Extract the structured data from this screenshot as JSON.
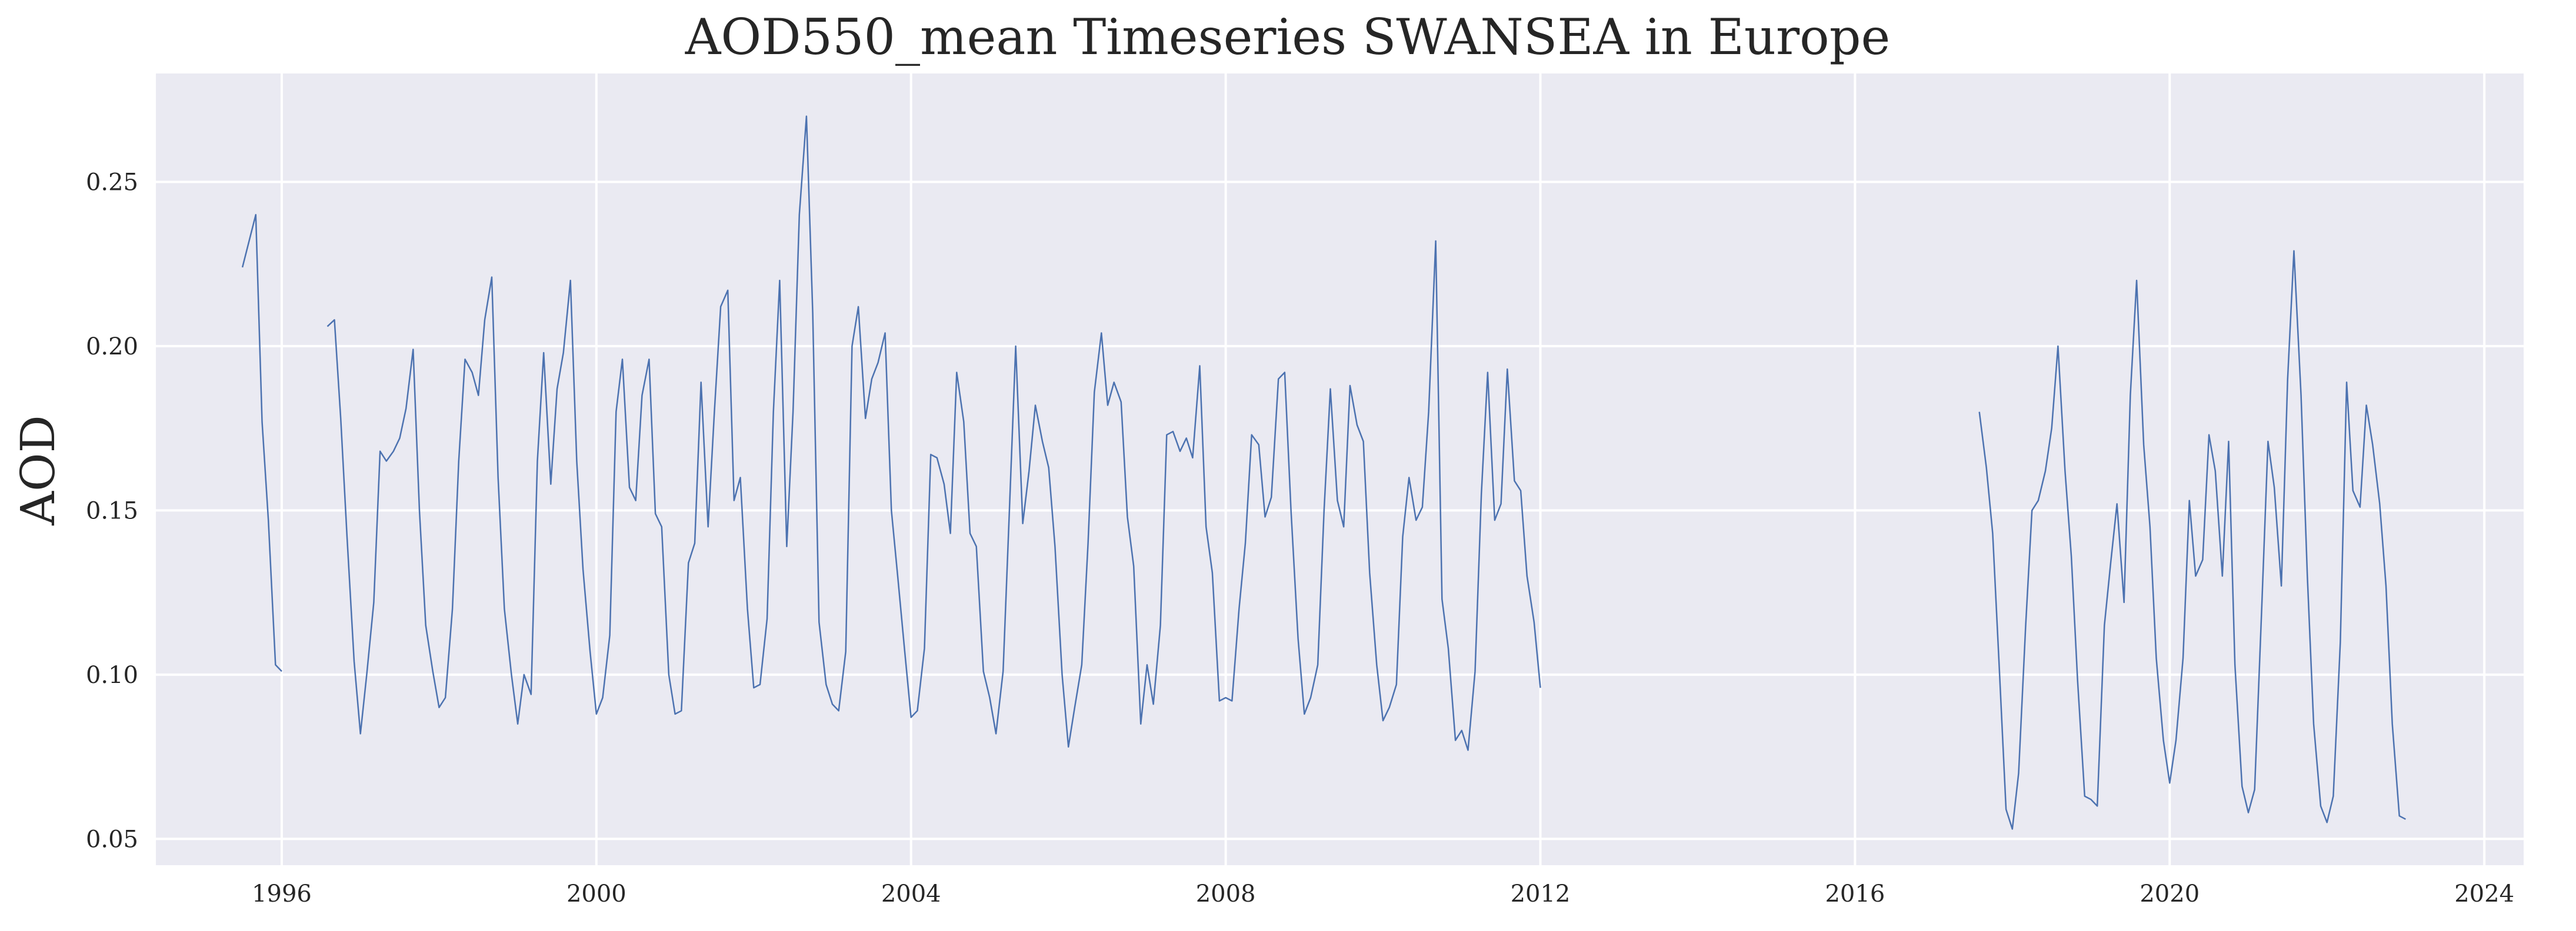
{
  "chart_data": {
    "type": "line",
    "title": "AOD550_mean Timeseries SWANSEA in Europe",
    "xlabel": "",
    "ylabel": "AOD",
    "x_ticks": [
      "1996",
      "2000",
      "2004",
      "2008",
      "2012",
      "2016",
      "2020",
      "2024"
    ],
    "y_ticks": [
      "0.05",
      "0.10",
      "0.15",
      "0.20",
      "0.25"
    ],
    "xlim": [
      1994.4,
      2024.5
    ],
    "ylim": [
      0.042,
      0.283
    ],
    "grid": true,
    "legend": "none",
    "colors": {
      "background": "#eaeaf2",
      "grid": "#ffffff",
      "line": "#4c72b0"
    },
    "series": [
      {
        "points": [
          [
            1995.5,
            0.224
          ],
          [
            1995.67,
            0.24
          ],
          [
            1995.75,
            0.177
          ],
          [
            1995.83,
            0.147
          ],
          [
            1995.92,
            0.103
          ],
          [
            1996.0,
            0.101
          ],
          null,
          [
            1996.58,
            0.206
          ],
          [
            1996.67,
            0.208
          ],
          [
            1996.75,
            0.178
          ],
          [
            1996.83,
            0.142
          ],
          [
            1996.92,
            0.104
          ],
          [
            1997.0,
            0.082
          ],
          [
            1997.08,
            0.1
          ],
          [
            1997.17,
            0.122
          ],
          [
            1997.25,
            0.168
          ],
          [
            1997.33,
            0.165
          ],
          [
            1997.42,
            0.168
          ],
          [
            1997.5,
            0.172
          ],
          [
            1997.58,
            0.181
          ],
          [
            1997.67,
            0.199
          ],
          [
            1997.75,
            0.15
          ],
          [
            1997.83,
            0.115
          ],
          [
            1997.92,
            0.101
          ],
          [
            1998.0,
            0.09
          ],
          [
            1998.08,
            0.093
          ],
          [
            1998.17,
            0.12
          ],
          [
            1998.25,
            0.165
          ],
          [
            1998.33,
            0.196
          ],
          [
            1998.42,
            0.192
          ],
          [
            1998.5,
            0.185
          ],
          [
            1998.58,
            0.208
          ],
          [
            1998.67,
            0.221
          ],
          [
            1998.75,
            0.16
          ],
          [
            1998.83,
            0.12
          ],
          [
            1998.92,
            0.1
          ],
          [
            1999.0,
            0.085
          ],
          [
            1999.08,
            0.1
          ],
          [
            1999.17,
            0.094
          ],
          [
            1999.25,
            0.165
          ],
          [
            1999.33,
            0.198
          ],
          [
            1999.42,
            0.158
          ],
          [
            1999.5,
            0.187
          ],
          [
            1999.58,
            0.198
          ],
          [
            1999.67,
            0.22
          ],
          [
            1999.75,
            0.165
          ],
          [
            1999.83,
            0.132
          ],
          [
            1999.92,
            0.107
          ],
          [
            2000.0,
            0.088
          ],
          [
            2000.08,
            0.093
          ],
          [
            2000.17,
            0.112
          ],
          [
            2000.25,
            0.18
          ],
          [
            2000.33,
            0.196
          ],
          [
            2000.42,
            0.157
          ],
          [
            2000.5,
            0.153
          ],
          [
            2000.58,
            0.185
          ],
          [
            2000.67,
            0.196
          ],
          [
            2000.75,
            0.149
          ],
          [
            2000.83,
            0.145
          ],
          [
            2000.92,
            0.1
          ],
          [
            2001.0,
            0.088
          ],
          [
            2001.08,
            0.089
          ],
          [
            2001.17,
            0.134
          ],
          [
            2001.25,
            0.14
          ],
          [
            2001.33,
            0.189
          ],
          [
            2001.42,
            0.145
          ],
          [
            2001.5,
            0.18
          ],
          [
            2001.58,
            0.212
          ],
          [
            2001.67,
            0.217
          ],
          [
            2001.75,
            0.153
          ],
          [
            2001.83,
            0.16
          ],
          [
            2001.92,
            0.12
          ],
          [
            2002.0,
            0.096
          ],
          [
            2002.08,
            0.097
          ],
          [
            2002.17,
            0.117
          ],
          [
            2002.25,
            0.18
          ],
          [
            2002.33,
            0.22
          ],
          [
            2002.42,
            0.139
          ],
          [
            2002.5,
            0.18
          ],
          [
            2002.58,
            0.24
          ],
          [
            2002.67,
            0.27
          ],
          [
            2002.75,
            0.21
          ],
          [
            2002.83,
            0.116
          ],
          [
            2002.92,
            0.097
          ],
          [
            2003.0,
            0.091
          ],
          [
            2003.08,
            0.089
          ],
          [
            2003.17,
            0.107
          ],
          [
            2003.25,
            0.2
          ],
          [
            2003.33,
            0.212
          ],
          [
            2003.42,
            0.178
          ],
          [
            2003.5,
            0.19
          ],
          [
            2003.58,
            0.195
          ],
          [
            2003.67,
            0.204
          ],
          [
            2003.75,
            0.15
          ],
          [
            2003.83,
            0.13
          ],
          [
            2003.92,
            0.107
          ],
          [
            2004.0,
            0.087
          ],
          [
            2004.08,
            0.089
          ],
          [
            2004.17,
            0.108
          ],
          [
            2004.25,
            0.167
          ],
          [
            2004.33,
            0.166
          ],
          [
            2004.42,
            0.158
          ],
          [
            2004.5,
            0.143
          ],
          [
            2004.58,
            0.192
          ],
          [
            2004.67,
            0.177
          ],
          [
            2004.75,
            0.143
          ],
          [
            2004.83,
            0.139
          ],
          [
            2004.92,
            0.101
          ],
          [
            2005.0,
            0.093
          ],
          [
            2005.08,
            0.082
          ],
          [
            2005.17,
            0.101
          ],
          [
            2005.25,
            0.15
          ],
          [
            2005.33,
            0.2
          ],
          [
            2005.42,
            0.146
          ],
          [
            2005.5,
            0.162
          ],
          [
            2005.58,
            0.182
          ],
          [
            2005.67,
            0.171
          ],
          [
            2005.75,
            0.163
          ],
          [
            2005.83,
            0.139
          ],
          [
            2005.92,
            0.1
          ],
          [
            2006.0,
            0.078
          ],
          [
            2006.08,
            0.09
          ],
          [
            2006.17,
            0.103
          ],
          [
            2006.25,
            0.14
          ],
          [
            2006.33,
            0.186
          ],
          [
            2006.42,
            0.204
          ],
          [
            2006.5,
            0.182
          ],
          [
            2006.58,
            0.189
          ],
          [
            2006.67,
            0.183
          ],
          [
            2006.75,
            0.148
          ],
          [
            2006.83,
            0.133
          ],
          [
            2006.92,
            0.085
          ],
          [
            2007.0,
            0.103
          ],
          [
            2007.08,
            0.091
          ],
          [
            2007.17,
            0.115
          ],
          [
            2007.25,
            0.173
          ],
          [
            2007.33,
            0.174
          ],
          [
            2007.42,
            0.168
          ],
          [
            2007.5,
            0.172
          ],
          [
            2007.58,
            0.166
          ],
          [
            2007.67,
            0.194
          ],
          [
            2007.75,
            0.145
          ],
          [
            2007.83,
            0.131
          ],
          [
            2007.92,
            0.092
          ],
          [
            2008.0,
            0.093
          ],
          [
            2008.08,
            0.092
          ],
          [
            2008.17,
            0.12
          ],
          [
            2008.25,
            0.14
          ],
          [
            2008.33,
            0.173
          ],
          [
            2008.42,
            0.17
          ],
          [
            2008.5,
            0.148
          ],
          [
            2008.58,
            0.154
          ],
          [
            2008.67,
            0.19
          ],
          [
            2008.75,
            0.192
          ],
          [
            2008.83,
            0.15
          ],
          [
            2008.92,
            0.111
          ],
          [
            2009.0,
            0.088
          ],
          [
            2009.08,
            0.093
          ],
          [
            2009.17,
            0.103
          ],
          [
            2009.25,
            0.15
          ],
          [
            2009.33,
            0.187
          ],
          [
            2009.42,
            0.153
          ],
          [
            2009.5,
            0.145
          ],
          [
            2009.58,
            0.188
          ],
          [
            2009.67,
            0.176
          ],
          [
            2009.75,
            0.171
          ],
          [
            2009.83,
            0.131
          ],
          [
            2009.92,
            0.103
          ],
          [
            2010.0,
            0.086
          ],
          [
            2010.08,
            0.09
          ],
          [
            2010.17,
            0.097
          ],
          [
            2010.25,
            0.142
          ],
          [
            2010.33,
            0.16
          ],
          [
            2010.42,
            0.147
          ],
          [
            2010.5,
            0.151
          ],
          [
            2010.58,
            0.18
          ],
          [
            2010.67,
            0.232
          ],
          [
            2010.75,
            0.123
          ],
          [
            2010.83,
            0.108
          ],
          [
            2010.92,
            0.08
          ],
          [
            2011.0,
            0.083
          ],
          [
            2011.08,
            0.077
          ],
          [
            2011.17,
            0.101
          ],
          [
            2011.25,
            0.155
          ],
          [
            2011.33,
            0.192
          ],
          [
            2011.42,
            0.147
          ],
          [
            2011.5,
            0.152
          ],
          [
            2011.58,
            0.193
          ],
          [
            2011.67,
            0.159
          ],
          [
            2011.75,
            0.156
          ],
          [
            2011.83,
            0.13
          ],
          [
            2011.92,
            0.116
          ],
          [
            2012.0,
            0.096
          ],
          null,
          [
            2017.58,
            0.18
          ],
          [
            2017.67,
            0.163
          ],
          [
            2017.75,
            0.143
          ],
          [
            2017.83,
            0.104
          ],
          [
            2017.92,
            0.059
          ],
          [
            2018.0,
            0.053
          ],
          [
            2018.08,
            0.07
          ],
          [
            2018.17,
            0.115
          ],
          [
            2018.25,
            0.15
          ],
          [
            2018.33,
            0.153
          ],
          [
            2018.42,
            0.162
          ],
          [
            2018.5,
            0.175
          ],
          [
            2018.58,
            0.2
          ],
          [
            2018.67,
            0.162
          ],
          [
            2018.75,
            0.136
          ],
          [
            2018.83,
            0.098
          ],
          [
            2018.92,
            0.063
          ],
          [
            2019.0,
            0.062
          ],
          [
            2019.08,
            0.06
          ],
          [
            2019.17,
            0.115
          ],
          [
            2019.25,
            0.134
          ],
          [
            2019.33,
            0.152
          ],
          [
            2019.42,
            0.122
          ],
          [
            2019.5,
            0.185
          ],
          [
            2019.58,
            0.22
          ],
          [
            2019.67,
            0.17
          ],
          [
            2019.75,
            0.145
          ],
          [
            2019.83,
            0.105
          ],
          [
            2019.92,
            0.08
          ],
          [
            2020.0,
            0.067
          ],
          [
            2020.08,
            0.08
          ],
          [
            2020.17,
            0.105
          ],
          [
            2020.25,
            0.153
          ],
          [
            2020.33,
            0.13
          ],
          [
            2020.42,
            0.135
          ],
          [
            2020.5,
            0.173
          ],
          [
            2020.58,
            0.162
          ],
          [
            2020.67,
            0.13
          ],
          [
            2020.75,
            0.171
          ],
          [
            2020.83,
            0.103
          ],
          [
            2020.92,
            0.066
          ],
          [
            2021.0,
            0.058
          ],
          [
            2021.08,
            0.065
          ],
          [
            2021.17,
            0.12
          ],
          [
            2021.25,
            0.171
          ],
          [
            2021.33,
            0.157
          ],
          [
            2021.42,
            0.127
          ],
          [
            2021.5,
            0.19
          ],
          [
            2021.58,
            0.229
          ],
          [
            2021.67,
            0.185
          ],
          [
            2021.75,
            0.13
          ],
          [
            2021.83,
            0.085
          ],
          [
            2021.92,
            0.06
          ],
          [
            2022.0,
            0.055
          ],
          [
            2022.08,
            0.063
          ],
          [
            2022.17,
            0.11
          ],
          [
            2022.25,
            0.189
          ],
          [
            2022.33,
            0.156
          ],
          [
            2022.42,
            0.151
          ],
          [
            2022.5,
            0.182
          ],
          [
            2022.58,
            0.17
          ],
          [
            2022.67,
            0.152
          ],
          [
            2022.75,
            0.127
          ],
          [
            2022.83,
            0.085
          ],
          [
            2022.92,
            0.057
          ],
          [
            2023.0,
            0.056
          ]
        ]
      }
    ]
  }
}
